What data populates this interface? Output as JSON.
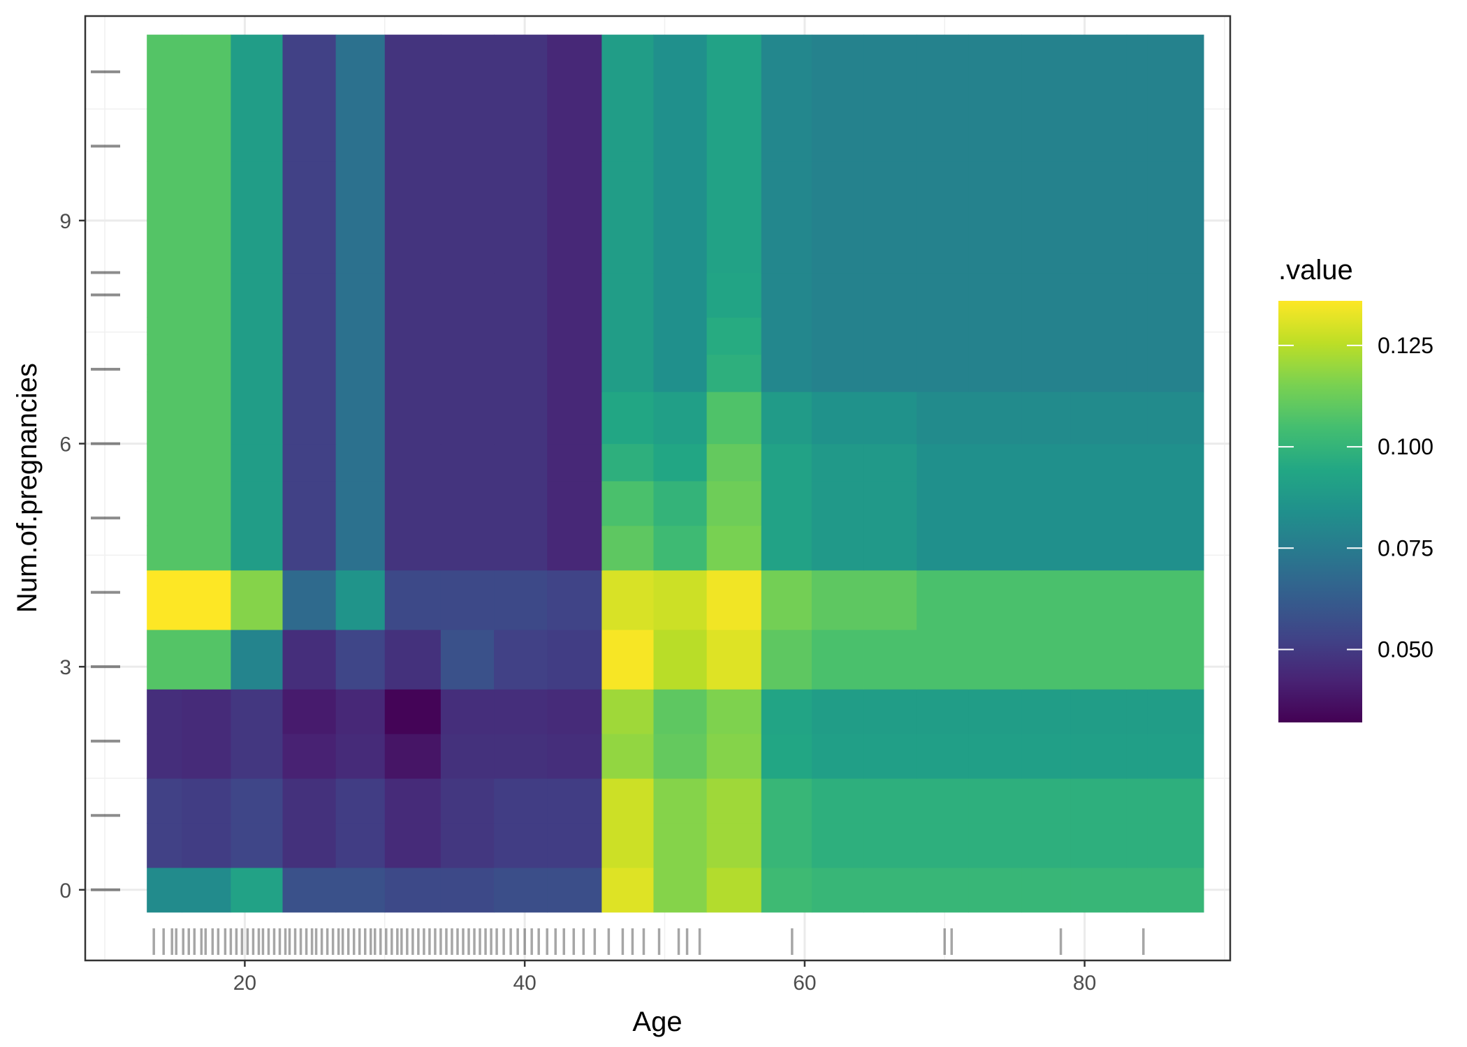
{
  "chart_data": {
    "type": "heatmap",
    "xlabel": "Age",
    "ylabel": "Num.of.pregnancies",
    "xlim": [
      8.6,
      90.4
    ],
    "ylim": [
      -0.95,
      11.75
    ],
    "x_ticks": [
      20,
      40,
      60,
      80
    ],
    "x_tick_labels": [
      "20",
      "40",
      "60",
      "80"
    ],
    "y_ticks": [
      0,
      3,
      6,
      9
    ],
    "y_tick_labels": [
      "0",
      "3",
      "6",
      "9"
    ],
    "grid": true,
    "legend": {
      "title": ".value",
      "position": "right",
      "range": [
        0.032,
        0.136
      ],
      "ticks": [
        0.05,
        0.075,
        0.1,
        0.125
      ],
      "tick_labels": [
        "0.050",
        "0.075",
        "0.100",
        "0.125"
      ]
    },
    "colormap": "viridis",
    "x_edges": [
      13,
      15.5,
      19,
      22.7,
      26.5,
      30,
      34,
      37.8,
      41.6,
      45.5,
      49.2,
      53,
      56.9,
      60.5,
      64.2,
      68,
      71.7,
      75.5,
      79,
      83,
      84.5,
      88.5
    ],
    "y_edges": [
      -0.3,
      0.3,
      0.9,
      1.5,
      2.1,
      2.7,
      3.5,
      4.3,
      4.9,
      5.5,
      6.0,
      6.7,
      7.2,
      7.7,
      8.3,
      9.0,
      9.8,
      11.5
    ],
    "z_rows": [
      [
        0.082,
        0.082,
        0.092,
        0.058,
        0.058,
        0.055,
        0.055,
        0.057,
        0.057,
        0.131,
        0.117,
        0.124,
        0.103,
        0.101,
        0.101,
        0.101,
        0.101,
        0.101,
        0.101,
        0.101,
        0.101
      ],
      [
        0.052,
        0.051,
        0.054,
        0.047,
        0.051,
        0.045,
        0.049,
        0.051,
        0.051,
        0.128,
        0.117,
        0.121,
        0.101,
        0.098,
        0.098,
        0.098,
        0.098,
        0.098,
        0.098,
        0.098,
        0.098
      ],
      [
        0.052,
        0.051,
        0.054,
        0.047,
        0.051,
        0.045,
        0.049,
        0.051,
        0.051,
        0.128,
        0.117,
        0.121,
        0.101,
        0.098,
        0.098,
        0.098,
        0.098,
        0.098,
        0.098,
        0.098,
        0.098
      ],
      [
        0.046,
        0.045,
        0.049,
        0.042,
        0.045,
        0.038,
        0.047,
        0.047,
        0.046,
        0.119,
        0.111,
        0.117,
        0.094,
        0.091,
        0.091,
        0.091,
        0.091,
        0.091,
        0.091,
        0.091,
        0.091
      ],
      [
        0.046,
        0.045,
        0.049,
        0.04,
        0.044,
        0.033,
        0.046,
        0.046,
        0.045,
        0.121,
        0.11,
        0.116,
        0.093,
        0.09,
        0.09,
        0.09,
        0.09,
        0.09,
        0.09,
        0.09,
        0.09
      ],
      [
        0.108,
        0.108,
        0.079,
        0.046,
        0.054,
        0.047,
        0.058,
        0.052,
        0.051,
        0.135,
        0.125,
        0.131,
        0.11,
        0.106,
        0.106,
        0.106,
        0.106,
        0.106,
        0.106,
        0.106,
        0.106
      ],
      [
        0.136,
        0.136,
        0.117,
        0.068,
        0.086,
        0.055,
        0.055,
        0.055,
        0.053,
        0.13,
        0.128,
        0.134,
        0.114,
        0.11,
        0.11,
        0.106,
        0.106,
        0.106,
        0.106,
        0.106,
        0.106
      ],
      [
        0.108,
        0.108,
        0.09,
        0.052,
        0.071,
        0.048,
        0.048,
        0.048,
        0.044,
        0.11,
        0.103,
        0.115,
        0.092,
        0.088,
        0.088,
        0.084,
        0.084,
        0.084,
        0.084,
        0.084,
        0.084
      ],
      [
        0.108,
        0.108,
        0.09,
        0.052,
        0.071,
        0.048,
        0.048,
        0.048,
        0.044,
        0.106,
        0.1,
        0.113,
        0.092,
        0.088,
        0.088,
        0.084,
        0.084,
        0.084,
        0.084,
        0.084,
        0.084
      ],
      [
        0.108,
        0.108,
        0.09,
        0.052,
        0.071,
        0.048,
        0.048,
        0.048,
        0.044,
        0.098,
        0.094,
        0.111,
        0.092,
        0.088,
        0.088,
        0.084,
        0.084,
        0.084,
        0.084,
        0.084,
        0.084
      ],
      [
        0.108,
        0.108,
        0.09,
        0.052,
        0.071,
        0.048,
        0.048,
        0.048,
        0.044,
        0.094,
        0.091,
        0.107,
        0.089,
        0.085,
        0.085,
        0.082,
        0.082,
        0.082,
        0.082,
        0.082,
        0.082
      ],
      [
        0.108,
        0.108,
        0.09,
        0.052,
        0.071,
        0.048,
        0.048,
        0.048,
        0.044,
        0.09,
        0.084,
        0.098,
        0.08,
        0.078,
        0.078,
        0.078,
        0.078,
        0.078,
        0.078,
        0.078,
        0.078
      ],
      [
        0.108,
        0.108,
        0.09,
        0.052,
        0.071,
        0.048,
        0.048,
        0.048,
        0.044,
        0.09,
        0.084,
        0.096,
        0.08,
        0.078,
        0.078,
        0.078,
        0.078,
        0.078,
        0.078,
        0.078,
        0.078
      ],
      [
        0.108,
        0.108,
        0.09,
        0.052,
        0.071,
        0.048,
        0.048,
        0.048,
        0.044,
        0.09,
        0.084,
        0.093,
        0.08,
        0.078,
        0.078,
        0.078,
        0.078,
        0.078,
        0.078,
        0.078,
        0.078
      ],
      [
        0.108,
        0.108,
        0.09,
        0.052,
        0.071,
        0.048,
        0.048,
        0.048,
        0.044,
        0.09,
        0.084,
        0.092,
        0.08,
        0.078,
        0.078,
        0.078,
        0.078,
        0.078,
        0.078,
        0.078,
        0.078
      ],
      [
        0.108,
        0.108,
        0.09,
        0.052,
        0.071,
        0.048,
        0.048,
        0.048,
        0.044,
        0.09,
        0.084,
        0.092,
        0.08,
        0.078,
        0.078,
        0.078,
        0.078,
        0.078,
        0.078,
        0.078,
        0.078
      ],
      [
        0.108,
        0.108,
        0.09,
        0.052,
        0.071,
        0.048,
        0.048,
        0.048,
        0.044,
        0.09,
        0.084,
        0.092,
        0.08,
        0.078,
        0.078,
        0.078,
        0.078,
        0.078,
        0.078,
        0.078,
        0.078
      ]
    ],
    "x_rug": [
      13.5,
      14.2,
      14.8,
      15.1,
      15.6,
      16.0,
      16.4,
      16.9,
      17.2,
      17.7,
      18.1,
      18.6,
      19.0,
      19.4,
      19.8,
      20.2,
      20.6,
      21.0,
      21.3,
      21.7,
      22.1,
      22.5,
      22.9,
      23.2,
      23.6,
      24.0,
      24.4,
      24.8,
      25.1,
      25.5,
      25.9,
      26.3,
      26.7,
      27.0,
      27.4,
      27.8,
      28.2,
      28.6,
      29.0,
      29.3,
      29.7,
      30.1,
      30.5,
      30.9,
      31.2,
      31.6,
      32.0,
      32.4,
      32.8,
      33.2,
      33.6,
      34.0,
      34.4,
      34.8,
      35.2,
      35.6,
      36.0,
      36.4,
      36.8,
      37.2,
      37.6,
      38.0,
      38.5,
      39.0,
      39.5,
      40.0,
      40.5,
      41.0,
      41.6,
      42.2,
      42.8,
      43.5,
      44.2,
      45.0,
      46.0,
      47.0,
      47.7,
      48.5,
      49.6,
      51.0,
      51.6,
      52.5,
      59.1,
      70.0,
      70.5,
      78.3,
      84.2
    ],
    "y_rug": [
      0,
      1,
      2,
      3,
      4,
      5,
      6,
      7,
      8,
      8.3,
      10,
      11
    ]
  }
}
